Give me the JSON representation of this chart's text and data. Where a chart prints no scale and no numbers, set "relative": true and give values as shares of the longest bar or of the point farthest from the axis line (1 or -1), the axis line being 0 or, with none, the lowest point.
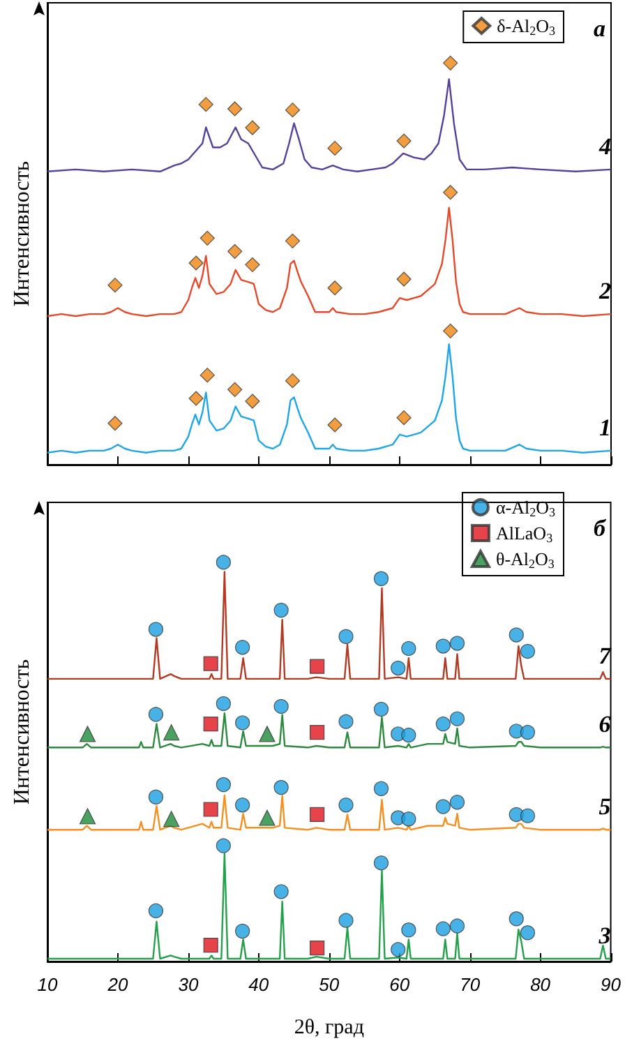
{
  "chart_data": [
    {
      "type": "line",
      "relative": true,
      "ylabel": "Интенсивность",
      "xlim": [
        10,
        90
      ],
      "xticks": [
        10,
        20,
        30,
        40,
        50,
        60,
        70,
        80,
        90
      ],
      "tick_labels": false,
      "legend": "top right",
      "annotations": [
        "а"
      ],
      "series": [
        {
          "name": "4",
          "color": "#55409b",
          "x": [
            10,
            14,
            18,
            22,
            26,
            28,
            29,
            30,
            31,
            32,
            32.5,
            33.5,
            34.5,
            35.5,
            36.7,
            37.5,
            38.5,
            39.5,
            40.5,
            42,
            43.5,
            44.3,
            45,
            45.7,
            46.5,
            47.5,
            49,
            50.5,
            52,
            54,
            56,
            58,
            59,
            60.5,
            62,
            63.5,
            64.5,
            65.5,
            66.3,
            67,
            67.7,
            68.5,
            69.5,
            72,
            76,
            80,
            85,
            90
          ],
          "values": [
            0.73,
            0.735,
            0.73,
            0.735,
            0.73,
            0.745,
            0.75,
            0.76,
            0.78,
            0.8,
            0.84,
            0.79,
            0.79,
            0.8,
            0.84,
            0.81,
            0.8,
            0.77,
            0.74,
            0.735,
            0.75,
            0.8,
            0.85,
            0.81,
            0.76,
            0.74,
            0.735,
            0.745,
            0.735,
            0.73,
            0.735,
            0.74,
            0.75,
            0.775,
            0.765,
            0.76,
            0.775,
            0.8,
            0.87,
            0.96,
            0.85,
            0.76,
            0.735,
            0.735,
            0.74,
            0.735,
            0.73,
            0.735
          ]
        },
        {
          "name": "2",
          "color": "#e8482a",
          "x": [
            10,
            12,
            14,
            16,
            18,
            19,
            20,
            21,
            22,
            24,
            26,
            28,
            29,
            30,
            30.5,
            31,
            31.5,
            32,
            32.5,
            33,
            34,
            35,
            36,
            36.7,
            37.5,
            38.5,
            39.3,
            40,
            41,
            42,
            43,
            44,
            44.5,
            45,
            45.5,
            46,
            47,
            48,
            50,
            50.5,
            51,
            53,
            55,
            57,
            59,
            60,
            61,
            62,
            63,
            64,
            65,
            66,
            66.5,
            67,
            67.5,
            68,
            68.5,
            69,
            70,
            72,
            75,
            77,
            78,
            80,
            83,
            86,
            90
          ],
          "values": [
            0.37,
            0.375,
            0.37,
            0.375,
            0.375,
            0.38,
            0.39,
            0.38,
            0.375,
            0.37,
            0.375,
            0.375,
            0.38,
            0.41,
            0.44,
            0.465,
            0.44,
            0.47,
            0.52,
            0.45,
            0.425,
            0.43,
            0.45,
            0.485,
            0.46,
            0.455,
            0.45,
            0.4,
            0.385,
            0.38,
            0.39,
            0.44,
            0.5,
            0.508,
            0.48,
            0.455,
            0.42,
            0.38,
            0.38,
            0.39,
            0.38,
            0.375,
            0.375,
            0.38,
            0.39,
            0.415,
            0.41,
            0.415,
            0.42,
            0.435,
            0.45,
            0.5,
            0.56,
            0.64,
            0.56,
            0.455,
            0.4,
            0.38,
            0.375,
            0.375,
            0.375,
            0.39,
            0.38,
            0.375,
            0.375,
            0.37,
            0.375
          ]
        },
        {
          "name": "1",
          "color": "#1ea6e6",
          "x": [
            10,
            12,
            14,
            16,
            18,
            19,
            20,
            21,
            22,
            24,
            26,
            28,
            29,
            30,
            30.5,
            31,
            31.5,
            32,
            32.5,
            33,
            34,
            35,
            36,
            36.7,
            37.5,
            38.5,
            39.3,
            40,
            41,
            42,
            43,
            44,
            44.5,
            45,
            45.5,
            46,
            47,
            48,
            50,
            50.5,
            51,
            53,
            55,
            57,
            59,
            60,
            61,
            62,
            63,
            64,
            65,
            66,
            66.5,
            67,
            67.5,
            68,
            68.5,
            69,
            70,
            72,
            75,
            77,
            78,
            80,
            83,
            86,
            90
          ],
          "values": [
            0.03,
            0.035,
            0.03,
            0.035,
            0.035,
            0.04,
            0.05,
            0.04,
            0.035,
            0.03,
            0.035,
            0.035,
            0.04,
            0.07,
            0.1,
            0.125,
            0.1,
            0.13,
            0.18,
            0.11,
            0.085,
            0.09,
            0.11,
            0.145,
            0.12,
            0.115,
            0.11,
            0.06,
            0.045,
            0.04,
            0.05,
            0.1,
            0.16,
            0.168,
            0.14,
            0.115,
            0.08,
            0.04,
            0.04,
            0.05,
            0.04,
            0.035,
            0.035,
            0.04,
            0.05,
            0.075,
            0.07,
            0.075,
            0.08,
            0.095,
            0.11,
            0.16,
            0.22,
            0.3,
            0.22,
            0.115,
            0.06,
            0.04,
            0.035,
            0.035,
            0.035,
            0.05,
            0.04,
            0.035,
            0.035,
            0.03,
            0.035
          ]
        },
        {
          "name": "δ-Al$_{2}$O$_{3}$",
          "type": "scatter",
          "marker": "diamond",
          "color": "#ee8410",
          "x": [
            19.6,
            31.1,
            32.7,
            36.6,
            39.1,
            44.8,
            50.8,
            60.6,
            67.2,
            19.6,
            31.1,
            32.7,
            36.6,
            39.1,
            44.8,
            50.8,
            60.6,
            67.2,
            32.5,
            36.6,
            39.1,
            44.8,
            50.8,
            60.6,
            67.2
          ],
          "values": [
            0.103,
            0.165,
            0.223,
            0.187,
            0.158,
            0.209,
            0.099,
            0.117,
            0.333,
            0.447,
            0.502,
            0.564,
            0.531,
            0.498,
            0.557,
            0.44,
            0.462,
            0.678,
            0.897,
            0.886,
            0.839,
            0.883,
            0.788,
            0.806,
            1.0
          ]
        }
      ]
    },
    {
      "type": "line",
      "relative": true,
      "ylabel": "Интенсивность",
      "xlabel": "2θ, град",
      "xlim": [
        10,
        90
      ],
      "xticks": [
        10,
        20,
        30,
        40,
        50,
        60,
        70,
        80,
        90
      ],
      "tick_labels": "x",
      "legend": "top right",
      "annotations": [
        "б"
      ],
      "series": [
        {
          "name": "7",
          "color": "#b33a22",
          "x": [
            10,
            15,
            15.6,
            16.2,
            20,
            23,
            23.3,
            23.6,
            25,
            25.5,
            26,
            27.5,
            28,
            29,
            32,
            33,
            33.3,
            33.6,
            34.7,
            35.15,
            35.6,
            37.4,
            37.8,
            38.2,
            40,
            42,
            43,
            43.35,
            43.7,
            47,
            48.2,
            50,
            52.2,
            52.6,
            53,
            57.1,
            57.5,
            57.9,
            59.8,
            61,
            61.3,
            61.6,
            64,
            66.2,
            66.5,
            66.8,
            67.9,
            68.2,
            68.5,
            70,
            76.5,
            76.9,
            77.3,
            77.7,
            80,
            85,
            88.5,
            88.9,
            89.3,
            90
          ],
          "values": [
            0.708,
            0.708,
            0.708,
            0.708,
            0.708,
            0.708,
            0.708,
            0.708,
            0.708,
            0.81,
            0.708,
            0.72,
            0.715,
            0.708,
            0.708,
            0.708,
            0.72,
            0.708,
            0.708,
            0.976,
            0.708,
            0.708,
            0.76,
            0.708,
            0.708,
            0.708,
            0.708,
            0.856,
            0.708,
            0.708,
            0.712,
            0.708,
            0.708,
            0.794,
            0.708,
            0.708,
            0.935,
            0.708,
            0.712,
            0.708,
            0.76,
            0.708,
            0.708,
            0.708,
            0.76,
            0.708,
            0.708,
            0.77,
            0.708,
            0.708,
            0.708,
            0.79,
            0.74,
            0.708,
            0.708,
            0.708,
            0.708,
            0.725,
            0.708,
            0.708
          ]
        },
        {
          "name": "6",
          "color": "#2b8a3e",
          "x": [
            10,
            15,
            15.6,
            16.2,
            20,
            23,
            23.3,
            23.6,
            25,
            25.5,
            26,
            27.5,
            28,
            29,
            32,
            33,
            33.3,
            33.6,
            34.7,
            35.15,
            35.6,
            37.4,
            37.8,
            38.2,
            40,
            42,
            43,
            43.35,
            43.7,
            47,
            48.2,
            50,
            52.2,
            52.6,
            53,
            57.1,
            57.5,
            57.9,
            59.8,
            61,
            61.3,
            61.6,
            64,
            66.2,
            66.5,
            66.8,
            67.9,
            68.2,
            68.5,
            70,
            76.5,
            76.9,
            77.3,
            77.7,
            80,
            85,
            88.5,
            88.9,
            89.3,
            90
          ],
          "values": [
            0.536,
            0.536,
            0.545,
            0.536,
            0.536,
            0.536,
            0.55,
            0.536,
            0.536,
            0.595,
            0.536,
            0.545,
            0.54,
            0.536,
            0.545,
            0.54,
            0.555,
            0.54,
            0.54,
            0.622,
            0.54,
            0.536,
            0.577,
            0.54,
            0.54,
            0.54,
            0.545,
            0.618,
            0.54,
            0.536,
            0.54,
            0.536,
            0.536,
            0.574,
            0.536,
            0.536,
            0.612,
            0.536,
            0.54,
            0.536,
            0.545,
            0.536,
            0.545,
            0.545,
            0.57,
            0.55,
            0.545,
            0.584,
            0.54,
            0.536,
            0.54,
            0.55,
            0.55,
            0.54,
            0.536,
            0.536,
            0.536,
            0.538,
            0.536,
            0.536
          ]
        },
        {
          "name": "5",
          "color": "#f59020",
          "x": [
            10,
            15,
            15.6,
            16.2,
            20,
            23,
            23.3,
            23.6,
            25,
            25.5,
            26,
            27.5,
            28,
            29,
            32,
            33,
            33.3,
            33.6,
            34.7,
            35.15,
            35.6,
            37.4,
            37.8,
            38.2,
            40,
            42,
            43,
            43.35,
            43.7,
            47,
            48.2,
            50,
            52.2,
            52.6,
            53,
            57.1,
            57.5,
            57.9,
            59.8,
            61,
            61.3,
            61.6,
            64,
            66.2,
            66.5,
            66.8,
            67.9,
            68.2,
            68.5,
            70,
            76.5,
            76.9,
            77.3,
            77.7,
            80,
            85,
            88.5,
            88.9,
            89.3,
            90
          ],
          "values": [
            0.33,
            0.33,
            0.34,
            0.33,
            0.33,
            0.33,
            0.35,
            0.33,
            0.33,
            0.39,
            0.33,
            0.34,
            0.335,
            0.33,
            0.345,
            0.335,
            0.35,
            0.335,
            0.335,
            0.416,
            0.335,
            0.33,
            0.37,
            0.335,
            0.335,
            0.335,
            0.34,
            0.415,
            0.335,
            0.33,
            0.335,
            0.33,
            0.33,
            0.368,
            0.33,
            0.33,
            0.405,
            0.33,
            0.335,
            0.33,
            0.34,
            0.33,
            0.34,
            0.34,
            0.36,
            0.345,
            0.34,
            0.37,
            0.335,
            0.33,
            0.335,
            0.345,
            0.345,
            0.335,
            0.33,
            0.33,
            0.33,
            0.333,
            0.33,
            0.33
          ]
        },
        {
          "name": "3",
          "color": "#23a04a",
          "x": [
            10,
            15,
            15.6,
            16.2,
            20,
            23,
            23.3,
            23.6,
            25,
            25.5,
            26,
            27.5,
            28,
            29,
            32,
            33,
            33.3,
            33.6,
            34.7,
            35.15,
            35.6,
            37.4,
            37.8,
            38.2,
            40,
            42,
            43,
            43.35,
            43.7,
            47,
            48.2,
            50,
            52.2,
            52.6,
            53,
            57.1,
            57.5,
            57.9,
            59.8,
            61,
            61.3,
            61.6,
            64,
            66.2,
            66.5,
            66.8,
            67.9,
            68.2,
            68.5,
            70,
            76.5,
            76.9,
            77.3,
            77.7,
            80,
            85,
            88.5,
            88.9,
            89.3,
            90
          ],
          "values": [
            0.007,
            0.007,
            0.007,
            0.007,
            0.007,
            0.007,
            0.007,
            0.007,
            0.007,
            0.1,
            0.007,
            0.015,
            0.012,
            0.007,
            0.007,
            0.007,
            0.015,
            0.007,
            0.007,
            0.27,
            0.007,
            0.007,
            0.055,
            0.007,
            0.007,
            0.007,
            0.007,
            0.15,
            0.007,
            0.007,
            0.012,
            0.007,
            0.007,
            0.085,
            0.007,
            0.007,
            0.227,
            0.007,
            0.01,
            0.007,
            0.055,
            0.007,
            0.007,
            0.007,
            0.055,
            0.007,
            0.007,
            0.07,
            0.007,
            0.007,
            0.007,
            0.08,
            0.05,
            0.007,
            0.007,
            0.007,
            0.007,
            0.04,
            0.007,
            0.007
          ]
        },
        {
          "name": "α-Al$_{2}$O$_{3}$",
          "type": "scatter",
          "marker": "circle",
          "color": "#1a9fe0",
          "x": [
            25.4,
            35.0,
            37.7,
            43.2,
            52.4,
            57.4,
            59.8,
            61.3,
            66.2,
            68.2,
            76.6,
            78.2,
            25.4,
            35.0,
            37.7,
            43.2,
            52.4,
            57.4,
            59.8,
            61.3,
            66.2,
            68.2,
            76.6,
            78.2,
            25.4,
            35.0,
            37.7,
            43.2,
            52.4,
            57.4,
            59.8,
            61.3,
            66.2,
            68.2,
            76.6,
            78.2,
            25.4,
            35.0,
            37.7,
            43.2,
            52.4,
            57.4,
            59.8,
            61.3,
            66.2,
            68.2,
            76.6,
            78.2
          ],
          "values": [
            0.832,
            1.0,
            0.787,
            0.88,
            0.814,
            0.959,
            0.735,
            0.784,
            0.79,
            0.797,
            0.818,
            0.777,
            0.619,
            0.646,
            0.598,
            0.639,
            0.601,
            0.632,
            0.57,
            0.567,
            0.595,
            0.608,
            0.577,
            0.574,
            0.412,
            0.443,
            0.392,
            0.436,
            0.392,
            0.433,
            0.36,
            0.357,
            0.388,
            0.399,
            0.368,
            0.365,
            0.127,
            0.29,
            0.076,
            0.175,
            0.103,
            0.247,
            0.03,
            0.079,
            0.082,
            0.089,
            0.107,
            0.072
          ]
        },
        {
          "name": "AlLaO$_{3}$",
          "type": "scatter",
          "marker": "square",
          "color": "#e0141e",
          "x": [
            33.2,
            48.3,
            33.2,
            48.3,
            33.2,
            48.3,
            33.2,
            48.3
          ],
          "values": [
            0.746,
            0.739,
            0.595,
            0.574,
            0.381,
            0.368,
            0.041,
            0.034
          ]
        },
        {
          "name": "θ-Al$_{2}$O$_{3}$",
          "type": "scatter",
          "marker": "triangle",
          "color": "#1e8a3a",
          "x": [
            15.7,
            27.6,
            41.2,
            15.7,
            27.6,
            41.2
          ],
          "values": [
            0.57,
            0.574,
            0.57,
            0.364,
            0.357,
            0.36
          ]
        }
      ]
    }
  ]
}
